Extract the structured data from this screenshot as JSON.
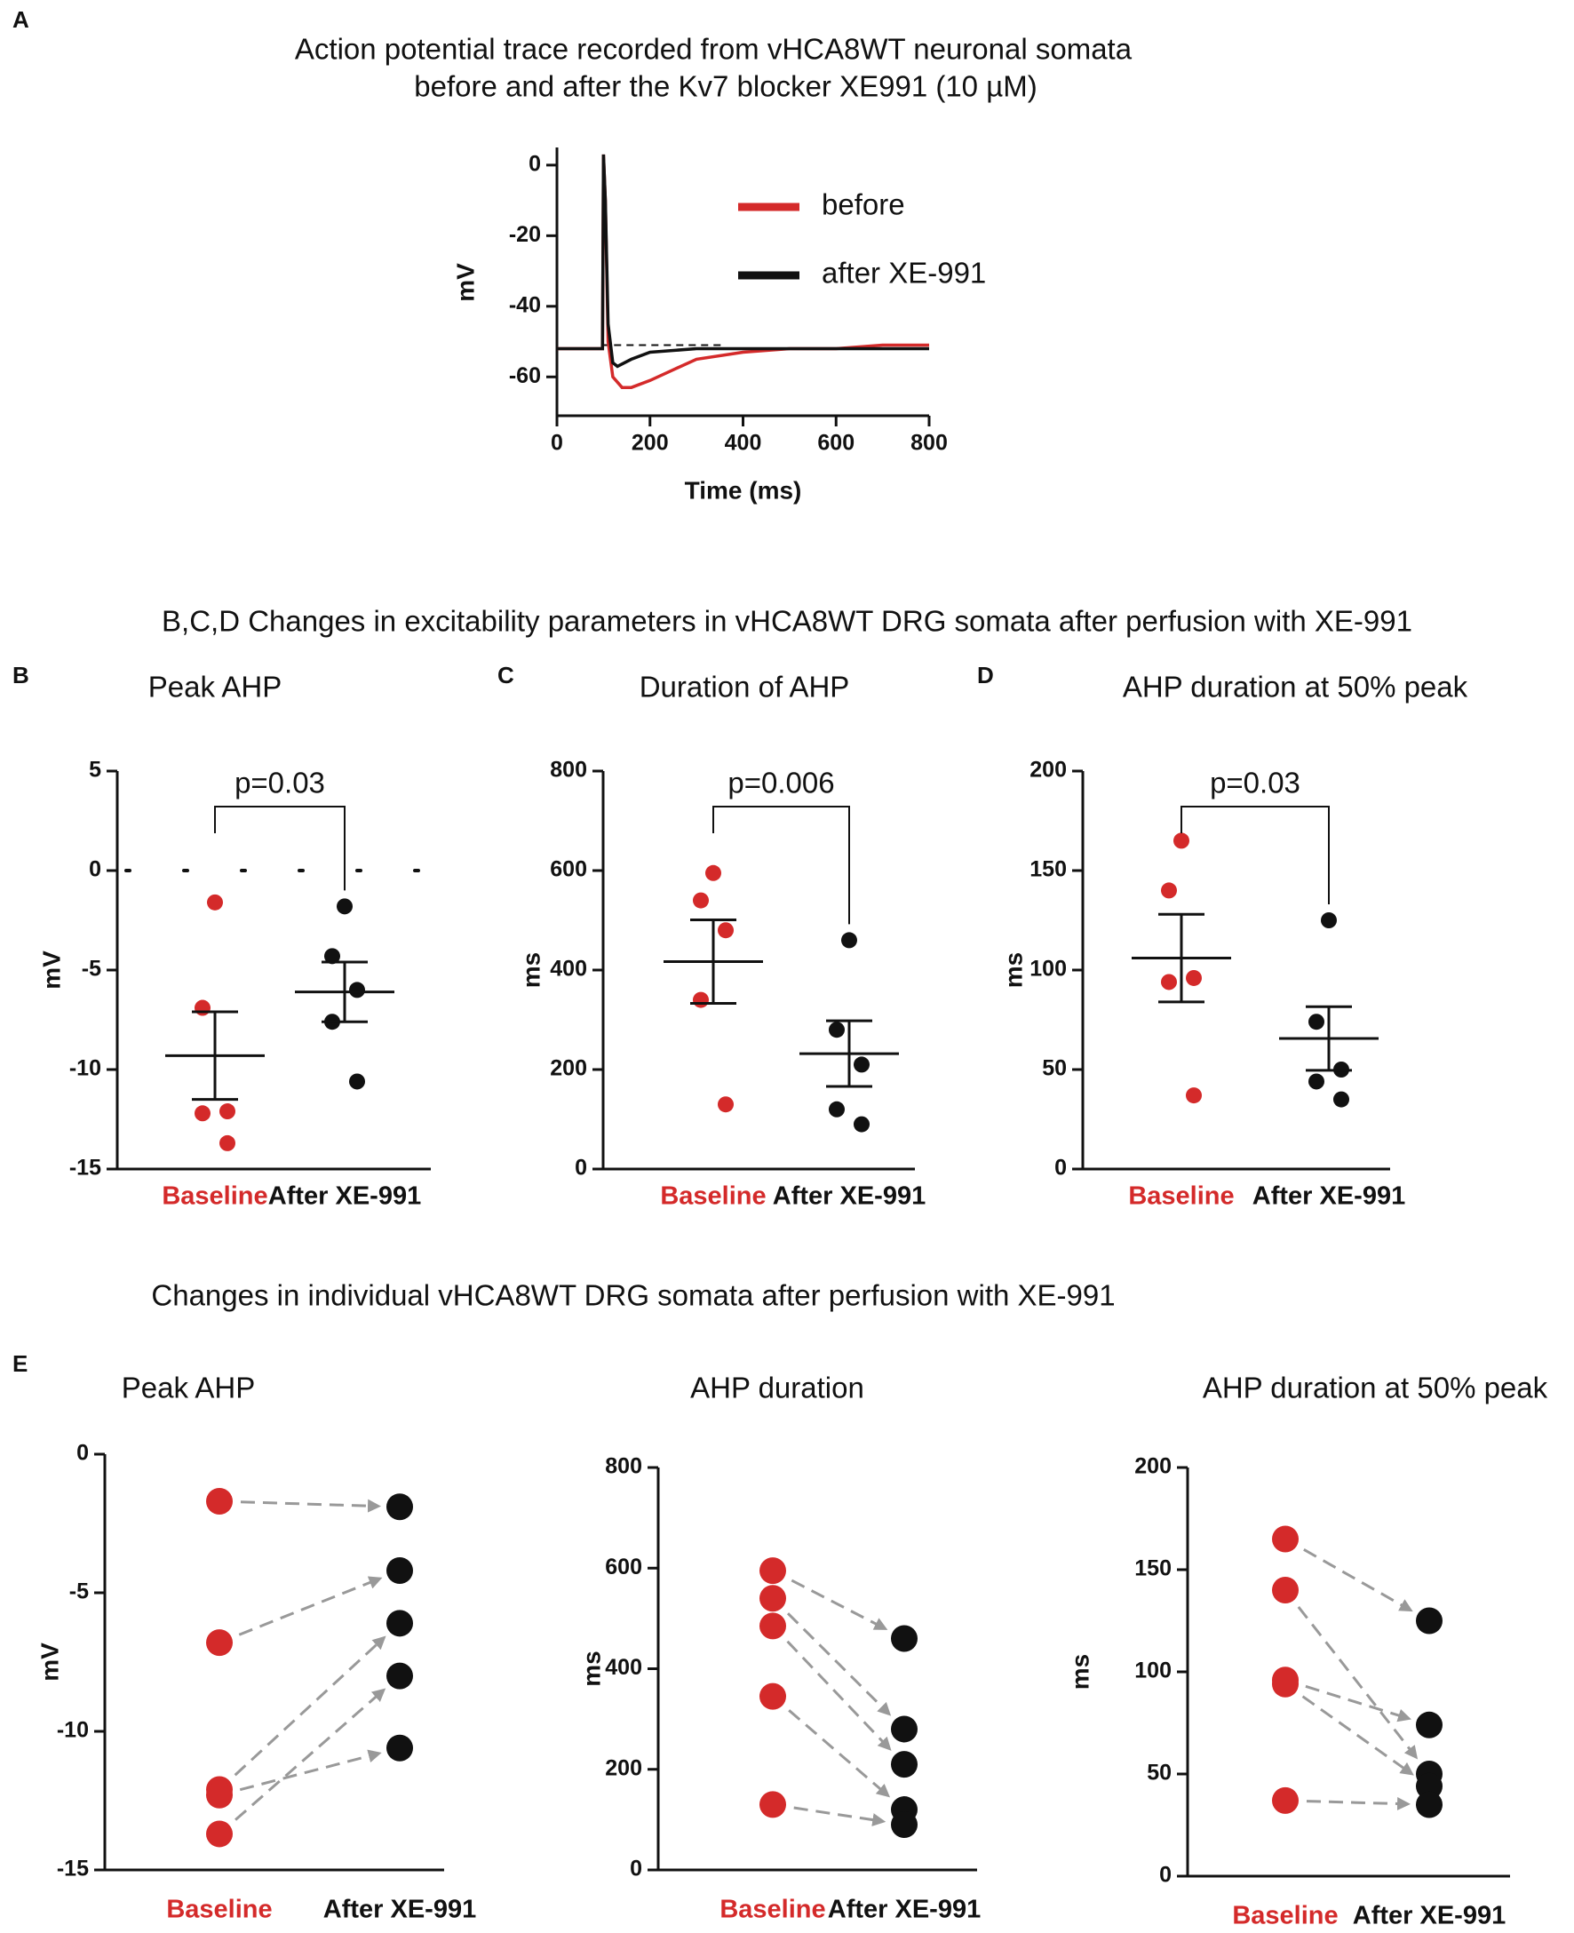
{
  "headings": [
    "B,C,D  Changes in excitability parameters in vHCA8WT DRG somata after perfusion with XE-991",
    "Changes in individual vHCA8WT DRG somata after perfusion with XE-991"
  ],
  "chart_data": [
    {
      "type": "line",
      "panel": "A",
      "title": [
        "Action potential trace recorded from vHCA8WT neuronal somata",
        "before and after the Kv7 blocker XE991 (10 µM)"
      ],
      "x_label": "Time (ms)",
      "y_label": "mV",
      "xlim": [
        0,
        800
      ],
      "ylim": [
        -71,
        5
      ],
      "xticks": [
        0,
        200,
        400,
        600,
        800
      ],
      "yticks": [
        0,
        -20,
        -40,
        -60
      ],
      "reference": -51,
      "series": [
        {
          "name": "before",
          "color": "#d42a2a",
          "x": [
            0,
            90,
            98,
            100,
            104,
            110,
            120,
            140,
            160,
            200,
            250,
            300,
            400,
            500,
            600,
            700,
            800
          ],
          "values": [
            -52,
            -52,
            -52,
            3,
            -10,
            -50,
            -60,
            -63,
            -63,
            -61,
            -58,
            -55,
            -53,
            -52,
            -52,
            -51,
            -51
          ]
        },
        {
          "name": "after XE-991",
          "color": "#111111",
          "x": [
            0,
            98,
            100,
            104,
            110,
            120,
            130,
            160,
            200,
            300,
            400,
            600,
            800
          ],
          "values": [
            -52,
            -52,
            3,
            -10,
            -45,
            -56,
            -57,
            -55,
            -53,
            -52,
            -52,
            -52,
            -52
          ]
        }
      ]
    },
    {
      "type": "dotplot",
      "panel": "B",
      "title": "Peak AHP",
      "y_label": "mV",
      "ylim": [
        -15,
        5
      ],
      "yticks": [
        -15,
        -10,
        -5,
        0,
        5
      ],
      "zero_line": true,
      "annotation": "p=0.03",
      "groups": [
        {
          "name": "Baseline",
          "color": "#d42a2a",
          "values": [
            -1.6,
            -6.9,
            -12.1,
            -12.2,
            -13.7
          ],
          "mean": -9.3,
          "sem": 2.2
        },
        {
          "name": "After XE-991",
          "color": "#111111",
          "values": [
            -1.8,
            -4.3,
            -6.0,
            -7.6,
            -10.6
          ],
          "mean": -6.1,
          "sem": 1.5
        }
      ]
    },
    {
      "type": "dotplot",
      "panel": "C",
      "title": "Duration of AHP",
      "y_label": "ms",
      "ylim": [
        0,
        800
      ],
      "yticks": [
        0,
        200,
        400,
        600,
        800
      ],
      "annotation": "p=0.006",
      "groups": [
        {
          "name": "Baseline",
          "color": "#d42a2a",
          "values": [
            595,
            540,
            480,
            340,
            130
          ],
          "mean": 417,
          "sem": 84
        },
        {
          "name": "After XE-991",
          "color": "#111111",
          "values": [
            460,
            280,
            210,
            120,
            90
          ],
          "mean": 232,
          "sem": 66
        }
      ]
    },
    {
      "type": "dotplot",
      "panel": "D",
      "title": "AHP duration at 50% peak",
      "y_label": "ms",
      "ylim": [
        0,
        200
      ],
      "yticks": [
        0,
        50,
        100,
        150,
        200
      ],
      "annotation": "p=0.03",
      "groups": [
        {
          "name": "Baseline",
          "color": "#d42a2a",
          "values": [
            165,
            140,
            96,
            94,
            37
          ],
          "mean": 106,
          "sem": 22
        },
        {
          "name": "After XE-991",
          "color": "#111111",
          "values": [
            125,
            74,
            50,
            44,
            35
          ],
          "mean": 65.6,
          "sem": 16
        }
      ]
    },
    {
      "type": "paired",
      "panel": "E",
      "title": "Peak AHP",
      "y_label": "mV",
      "ylim": [
        -15,
        0
      ],
      "yticks": [
        0,
        -5,
        -10,
        -15
      ],
      "series": [
        {
          "name": "Baseline",
          "color": "#d42a2a",
          "values": [
            -1.7,
            -6.8,
            -12.1,
            -12.3,
            -13.7
          ]
        },
        {
          "name": "After XE-991",
          "color": "#111111",
          "values": [
            -1.9,
            -4.2,
            -6.1,
            -10.6,
            -8.0
          ]
        }
      ]
    },
    {
      "type": "paired",
      "title": "AHP duration",
      "y_label": "ms",
      "ylim": [
        0,
        800
      ],
      "yticks": [
        0,
        200,
        400,
        600,
        800
      ],
      "series": [
        {
          "name": "Baseline",
          "color": "#d42a2a",
          "values": [
            595,
            540,
            485,
            345,
            130
          ]
        },
        {
          "name": "After XE-991",
          "color": "#111111",
          "values": [
            460,
            280,
            210,
            120,
            90
          ]
        }
      ]
    },
    {
      "type": "paired",
      "title": "AHP duration at 50% peak",
      "y_label": "ms",
      "ylim": [
        0,
        200
      ],
      "yticks": [
        0,
        50,
        100,
        150,
        200
      ],
      "series": [
        {
          "name": "Baseline",
          "color": "#d42a2a",
          "values": [
            165,
            140,
            96,
            94,
            37
          ]
        },
        {
          "name": "After XE-991",
          "color": "#111111",
          "values": [
            125,
            50,
            74,
            44,
            35
          ]
        }
      ]
    }
  ]
}
